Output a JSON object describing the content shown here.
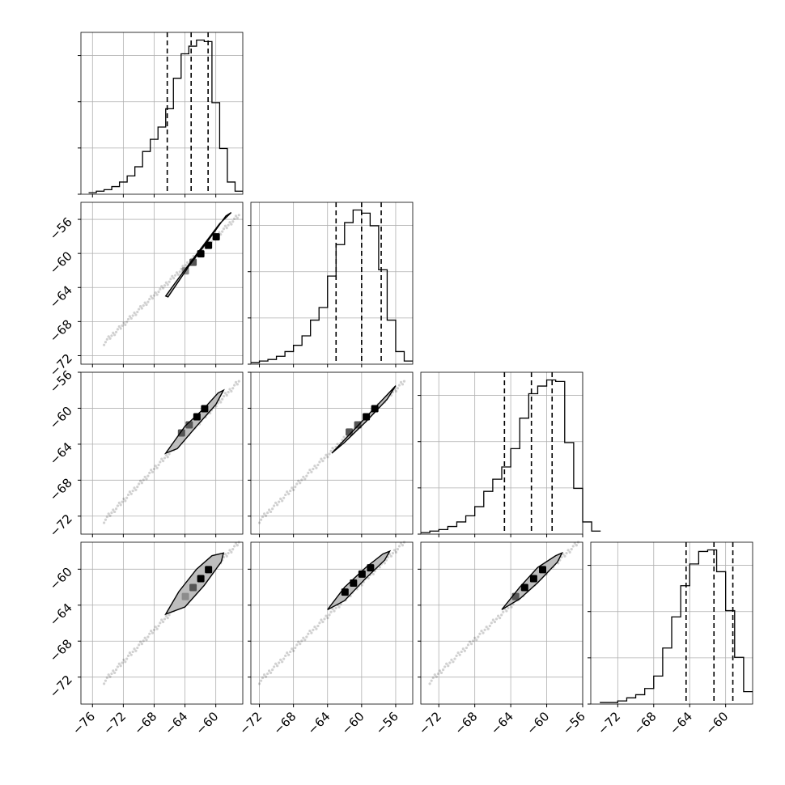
{
  "chart_data": {
    "type": "corner",
    "title": "",
    "n_params": 4,
    "colors": {
      "line": "#000000",
      "grid": "#b0b0b0",
      "fill_light": "#bdbdbd",
      "fill_mid": "#8c8c8c",
      "fill_dark": "#555555",
      "scatter": "#000000"
    },
    "grid": true,
    "axes": [
      {
        "range": [
          -77.5,
          -56.5
        ],
        "ticks": [
          -76,
          -72,
          -68,
          -64,
          -60
        ],
        "tick_labels": [
          "−76",
          "−72",
          "−68",
          "−64",
          "−60"
        ]
      },
      {
        "range": [
          -73.0,
          -54.0
        ],
        "ticks": [
          -72,
          -68,
          -64,
          -60,
          -56
        ],
        "tick_labels": [
          "−72",
          "−68",
          "−64",
          "−60",
          "−56"
        ]
      },
      {
        "range": [
          -74.0,
          -56.0
        ],
        "ticks": [
          -72,
          -68,
          -64,
          -60,
          -56
        ],
        "tick_labels": [
          "−72",
          "−68",
          "−64",
          "−60",
          "−56"
        ]
      },
      {
        "range": [
          -75.0,
          -57.0
        ],
        "ticks": [
          -72,
          -68,
          -64,
          -60
        ],
        "tick_labels": [
          "−72",
          "−68",
          "−64",
          "−60"
        ]
      }
    ],
    "histograms": [
      {
        "param": 0,
        "edges_min": -76.5,
        "bin_width": 1.0,
        "counts": [
          1,
          2,
          3,
          5,
          8,
          12,
          18,
          28,
          36,
          44,
          56,
          76,
          92,
          97,
          101,
          100,
          60,
          30,
          8,
          2
        ],
        "quantiles": [
          -66.3,
          -63.2,
          -61.0
        ]
      },
      {
        "param": 1,
        "edges_min": -73.0,
        "bin_width": 1.0,
        "counts": [
          1,
          2,
          3,
          5,
          8,
          12,
          18,
          28,
          36,
          56,
          76,
          90,
          98,
          96,
          88,
          60,
          28,
          8,
          2
        ],
        "quantiles": [
          -63.0,
          -60.0,
          -57.7
        ]
      },
      {
        "param": 2,
        "edges_min": -74.0,
        "bin_width": 1.0,
        "counts": [
          1,
          2,
          3,
          5,
          8,
          12,
          18,
          28,
          36,
          44,
          56,
          76,
          92,
          97,
          101,
          100,
          60,
          30,
          8,
          2
        ],
        "quantiles": [
          -64.7,
          -61.7,
          -59.4
        ]
      },
      {
        "param": 3,
        "edges_min": -74.0,
        "bin_width": 1.0,
        "counts": [
          1,
          1,
          2,
          4,
          6,
          10,
          18,
          36,
          56,
          76,
          90,
          98,
          99,
          85,
          60,
          30,
          8
        ],
        "quantiles": [
          -64.4,
          -61.3,
          -59.2
        ]
      }
    ],
    "pairs": [
      {
        "x_param": 0,
        "y_param": 1,
        "scatter_from": [
          -74.5,
          -70.5
        ],
        "scatter_to": [
          -57.0,
          -55.5
        ],
        "contour": [
          [
            -66.5,
            -65.0
          ],
          [
            -64.5,
            -62.5
          ],
          [
            -62.0,
            -59.5
          ],
          [
            -59.5,
            -56.5
          ],
          [
            -58.0,
            -55.2
          ],
          [
            -58.7,
            -55.6
          ],
          [
            -61.0,
            -58.5
          ],
          [
            -63.5,
            -61.5
          ],
          [
            -66.2,
            -65.1
          ]
        ],
        "dense": [
          [
            -64.0,
            -62.0
          ],
          [
            -63.0,
            -61.0
          ],
          [
            -62.0,
            -60.0
          ],
          [
            -61.0,
            -59.0
          ],
          [
            -60.0,
            -58.0
          ]
        ],
        "dense_shade": [
          1,
          2,
          3,
          3,
          3
        ]
      },
      {
        "x_param": 0,
        "y_param": 2,
        "scatter_from": [
          -74.5,
          -72.5
        ],
        "scatter_to": [
          -57.0,
          -57.0
        ],
        "contour": [
          [
            -66.5,
            -65.0
          ],
          [
            -64.0,
            -62.0
          ],
          [
            -61.5,
            -60.0
          ],
          [
            -59.7,
            -58.3
          ],
          [
            -59.0,
            -58.0
          ],
          [
            -60.0,
            -59.6
          ],
          [
            -62.5,
            -62.0
          ],
          [
            -65.0,
            -64.5
          ],
          [
            -66.5,
            -65.0
          ]
        ],
        "dense": [
          [
            -64.5,
            -62.7
          ],
          [
            -63.5,
            -61.8
          ],
          [
            -62.5,
            -60.9
          ],
          [
            -61.5,
            -60.0
          ]
        ],
        "dense_shade": [
          2,
          2,
          3,
          3
        ]
      },
      {
        "x_param": 1,
        "y_param": 2,
        "scatter_from": [
          -72.0,
          -72.5
        ],
        "scatter_to": [
          -55.0,
          -57.0
        ],
        "contour": [
          [
            -63.5,
            -65.0
          ],
          [
            -61.0,
            -62.5
          ],
          [
            -58.5,
            -60.0
          ],
          [
            -56.5,
            -58.0
          ],
          [
            -56.0,
            -57.5
          ],
          [
            -57.0,
            -59.0
          ],
          [
            -59.5,
            -61.5
          ],
          [
            -62.0,
            -63.8
          ],
          [
            -63.5,
            -65.0
          ]
        ],
        "dense": [
          [
            -61.5,
            -62.6
          ],
          [
            -60.5,
            -61.8
          ],
          [
            -59.5,
            -60.9
          ],
          [
            -58.5,
            -60.0
          ]
        ],
        "dense_shade": [
          2,
          2,
          3,
          3
        ]
      },
      {
        "x_param": 0,
        "y_param": 3,
        "scatter_from": [
          -74.5,
          -72.5
        ],
        "scatter_to": [
          -57.0,
          -57.0
        ],
        "contour": [
          [
            -66.5,
            -65.0
          ],
          [
            -64.8,
            -62.5
          ],
          [
            -62.5,
            -60.0
          ],
          [
            -60.5,
            -58.5
          ],
          [
            -59.0,
            -58.2
          ],
          [
            -59.3,
            -59.2
          ],
          [
            -61.5,
            -61.8
          ],
          [
            -64.0,
            -64.2
          ],
          [
            -66.5,
            -65.0
          ]
        ],
        "dense": [
          [
            -64.0,
            -63.0
          ],
          [
            -63.0,
            -62.0
          ],
          [
            -62.0,
            -61.0
          ],
          [
            -61.0,
            -60.0
          ]
        ],
        "dense_shade": [
          1,
          2,
          3,
          3
        ]
      },
      {
        "x_param": 1,
        "y_param": 3,
        "scatter_from": [
          -72.0,
          -72.5
        ],
        "scatter_to": [
          -55.0,
          -57.0
        ],
        "contour": [
          [
            -64.0,
            -64.5
          ],
          [
            -62.0,
            -62.0
          ],
          [
            -59.5,
            -59.8
          ],
          [
            -57.5,
            -58.3
          ],
          [
            -56.7,
            -58.0
          ],
          [
            -57.3,
            -59.0
          ],
          [
            -59.5,
            -61.0
          ],
          [
            -62.0,
            -63.5
          ],
          [
            -64.0,
            -64.5
          ]
        ],
        "dense": [
          [
            -62.0,
            -62.5
          ],
          [
            -61.0,
            -61.5
          ],
          [
            -60.0,
            -60.5
          ],
          [
            -59.0,
            -59.8
          ]
        ],
        "dense_shade": [
          3,
          3,
          3,
          3
        ]
      },
      {
        "x_param": 2,
        "y_param": 3,
        "scatter_from": [
          -73.0,
          -72.5
        ],
        "scatter_to": [
          -56.5,
          -57.0
        ],
        "contour": [
          [
            -65.0,
            -64.5
          ],
          [
            -63.0,
            -62.0
          ],
          [
            -61.0,
            -59.8
          ],
          [
            -59.0,
            -58.5
          ],
          [
            -58.3,
            -58.2
          ],
          [
            -58.8,
            -59.2
          ],
          [
            -61.0,
            -61.5
          ],
          [
            -63.0,
            -63.3
          ],
          [
            -65.0,
            -64.5
          ]
        ],
        "dense": [
          [
            -63.5,
            -63.0
          ],
          [
            -62.5,
            -62.0
          ],
          [
            -61.5,
            -61.0
          ],
          [
            -60.5,
            -60.0
          ]
        ],
        "dense_shade": [
          2,
          3,
          3,
          3
        ]
      }
    ]
  }
}
